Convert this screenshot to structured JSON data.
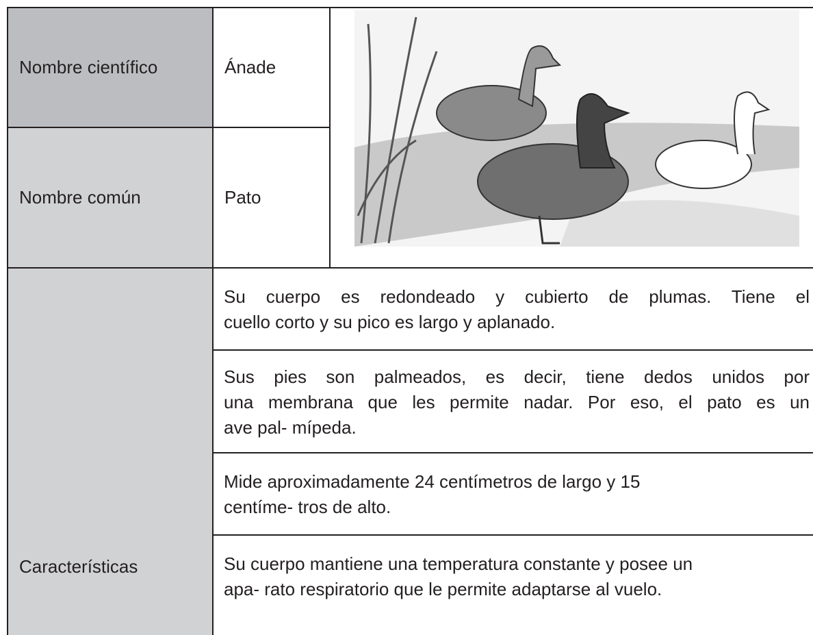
{
  "table": {
    "rows": [
      [
        "Nombre científico",
        "Ánade"
      ],
      [
        "Nombre común",
        "Pato"
      ]
    ],
    "characteristics": {
      "label": "Características",
      "items": [
        [
          "Su cuerpo es redondeado  y cubierto de plumas. Tiene el",
          "cuello corto y su pico es largo y aplanado."
        ],
        [
          "Sus pies son palmeados, es decir, tiene dedos unidos por",
          "una membrana que les permite nadar. Por eso, el pato es un",
          "ave pal- mípeda."
        ],
        [
          "Mide aproximadamente 24 centímetros de largo y 15",
          "centíme- tros de alto."
        ],
        [
          "Su cuerpo mantiene una temperatura constante y posee un",
          "apa- rato respiratorio que le permite adaptarse al vuelo."
        ]
      ]
    }
  }
}
